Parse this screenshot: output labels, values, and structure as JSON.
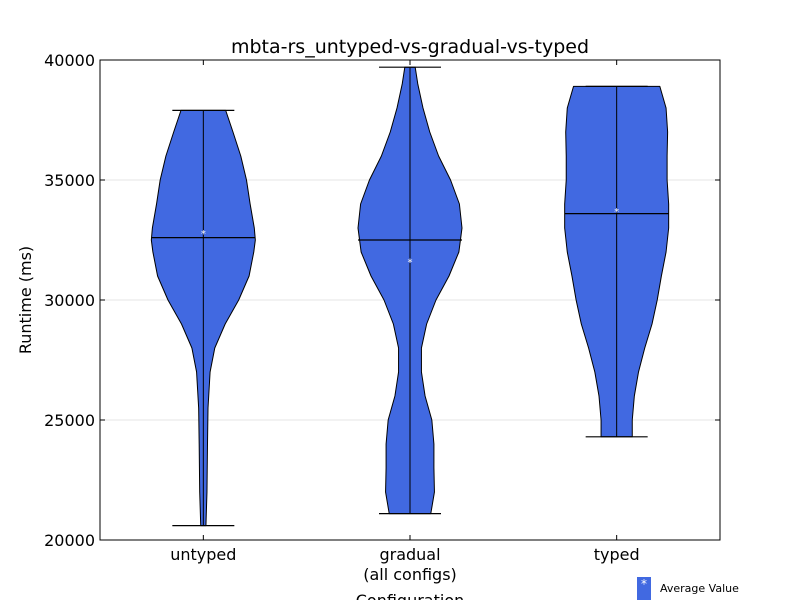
{
  "chart_data": {
    "type": "violin",
    "title": "mbta-rs_untyped-vs-gradual-vs-typed",
    "xlabel": "Configuration",
    "ylabel": "Runtime (ms)",
    "ylim": [
      20000,
      40000
    ],
    "yticks": [
      "20000",
      "25000",
      "30000",
      "35000",
      "40000"
    ],
    "categories": [
      "untyped",
      "gradual\n(all configs)",
      "typed"
    ],
    "series": [
      {
        "min": 20600,
        "max": 37900,
        "median": 32600,
        "mean": 32800,
        "density": [
          [
            20600,
            0.05
          ],
          [
            22000,
            0.07
          ],
          [
            24000,
            0.08
          ],
          [
            25500,
            0.09
          ],
          [
            27000,
            0.13
          ],
          [
            28000,
            0.22
          ],
          [
            29000,
            0.42
          ],
          [
            30000,
            0.68
          ],
          [
            31000,
            0.88
          ],
          [
            32000,
            0.97
          ],
          [
            32500,
            1.0
          ],
          [
            33000,
            0.98
          ],
          [
            34000,
            0.9
          ],
          [
            35000,
            0.83
          ],
          [
            36000,
            0.72
          ],
          [
            37000,
            0.57
          ],
          [
            37900,
            0.43
          ]
        ]
      },
      {
        "min": 21100,
        "max": 39700,
        "median": 32500,
        "mean": 31600,
        "density": [
          [
            21100,
            0.4
          ],
          [
            22000,
            0.47
          ],
          [
            23000,
            0.46
          ],
          [
            24000,
            0.46
          ],
          [
            25000,
            0.42
          ],
          [
            26000,
            0.29
          ],
          [
            27000,
            0.22
          ],
          [
            28000,
            0.22
          ],
          [
            29000,
            0.32
          ],
          [
            30000,
            0.5
          ],
          [
            31000,
            0.75
          ],
          [
            32000,
            0.94
          ],
          [
            33000,
            1.0
          ],
          [
            34000,
            0.95
          ],
          [
            35000,
            0.78
          ],
          [
            36000,
            0.55
          ],
          [
            37000,
            0.38
          ],
          [
            38000,
            0.25
          ],
          [
            39000,
            0.15
          ],
          [
            39700,
            0.1
          ]
        ]
      },
      {
        "min": 24300,
        "max": 38900,
        "median": 33600,
        "mean": 33700,
        "density": [
          [
            24300,
            0.3
          ],
          [
            25000,
            0.3
          ],
          [
            26000,
            0.34
          ],
          [
            27000,
            0.42
          ],
          [
            28000,
            0.54
          ],
          [
            29000,
            0.68
          ],
          [
            30000,
            0.78
          ],
          [
            31000,
            0.86
          ],
          [
            32000,
            0.95
          ],
          [
            33000,
            1.0
          ],
          [
            34000,
            1.0
          ],
          [
            35000,
            0.97
          ],
          [
            36000,
            0.97
          ],
          [
            37000,
            0.98
          ],
          [
            38000,
            0.95
          ],
          [
            38900,
            0.83
          ]
        ]
      }
    ],
    "fill_color": "#4169E1",
    "legend": {
      "label": "Average Value",
      "marker": "*",
      "position": "bottom-right"
    }
  }
}
